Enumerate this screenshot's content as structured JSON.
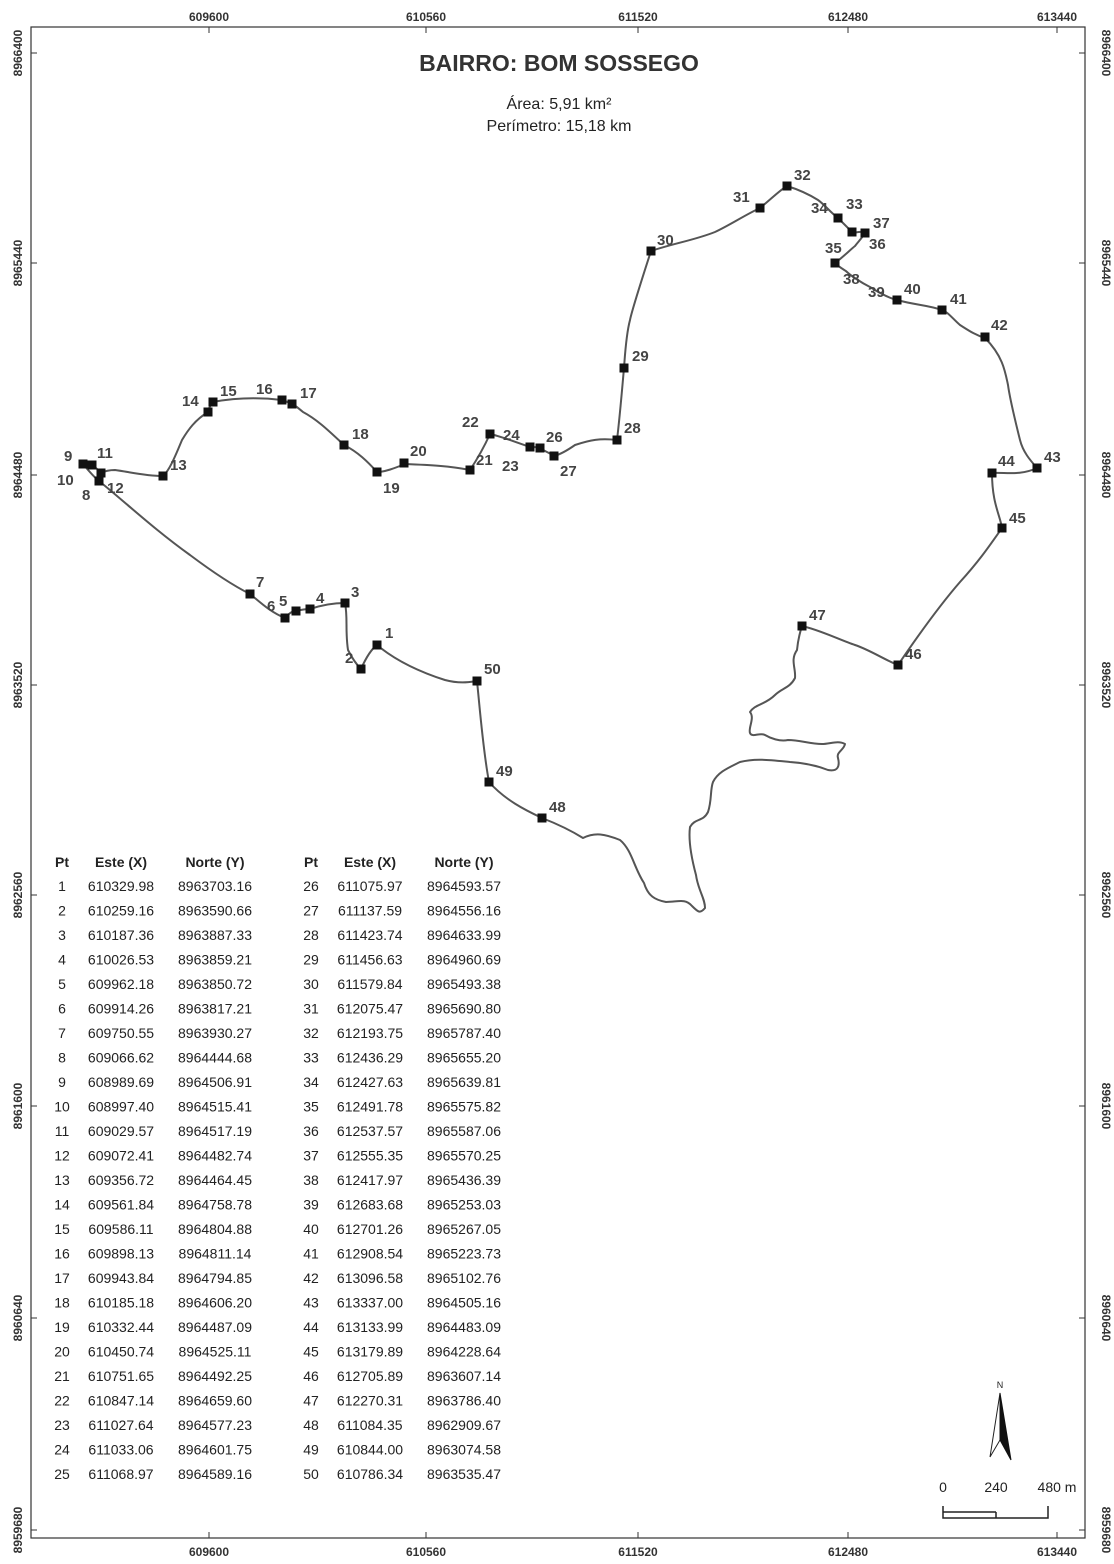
{
  "title": "BAIRRO: BOM SOSSEGO",
  "area": "Área: 5,91 km²",
  "perimeter": "Perímetro: 15,18 km",
  "x_ticks": [
    "609600",
    "610560",
    "611520",
    "612480",
    "613440"
  ],
  "y_ticks": [
    "8966400",
    "8965440",
    "8964480",
    "8963520",
    "8962560",
    "8961600",
    "8960640",
    "8959680"
  ],
  "table_headers": {
    "pt": "Pt",
    "x": "Este (X)",
    "y": "Norte (Y)"
  },
  "points": [
    {
      "pt": "1",
      "x": "610329.98",
      "y": "8963703.16"
    },
    {
      "pt": "2",
      "x": "610259.16",
      "y": "8963590.66"
    },
    {
      "pt": "3",
      "x": "610187.36",
      "y": "8963887.33"
    },
    {
      "pt": "4",
      "x": "610026.53",
      "y": "8963859.21"
    },
    {
      "pt": "5",
      "x": "609962.18",
      "y": "8963850.72"
    },
    {
      "pt": "6",
      "x": "609914.26",
      "y": "8963817.21"
    },
    {
      "pt": "7",
      "x": "609750.55",
      "y": "8963930.27"
    },
    {
      "pt": "8",
      "x": "609066.62",
      "y": "8964444.68"
    },
    {
      "pt": "9",
      "x": "608989.69",
      "y": "8964506.91"
    },
    {
      "pt": "10",
      "x": "608997.40",
      "y": "8964515.41"
    },
    {
      "pt": "11",
      "x": "609029.57",
      "y": "8964517.19"
    },
    {
      "pt": "12",
      "x": "609072.41",
      "y": "8964482.74"
    },
    {
      "pt": "13",
      "x": "609356.72",
      "y": "8964464.45"
    },
    {
      "pt": "14",
      "x": "609561.84",
      "y": "8964758.78"
    },
    {
      "pt": "15",
      "x": "609586.11",
      "y": "8964804.88"
    },
    {
      "pt": "16",
      "x": "609898.13",
      "y": "8964811.14"
    },
    {
      "pt": "17",
      "x": "609943.84",
      "y": "8964794.85"
    },
    {
      "pt": "18",
      "x": "610185.18",
      "y": "8964606.20"
    },
    {
      "pt": "19",
      "x": "610332.44",
      "y": "8964487.09"
    },
    {
      "pt": "20",
      "x": "610450.74",
      "y": "8964525.11"
    },
    {
      "pt": "21",
      "x": "610751.65",
      "y": "8964492.25"
    },
    {
      "pt": "22",
      "x": "610847.14",
      "y": "8964659.60"
    },
    {
      "pt": "23",
      "x": "611027.64",
      "y": "8964577.23"
    },
    {
      "pt": "24",
      "x": "611033.06",
      "y": "8964601.75"
    },
    {
      "pt": "25",
      "x": "611068.97",
      "y": "8964589.16"
    },
    {
      "pt": "26",
      "x": "611075.97",
      "y": "8964593.57"
    },
    {
      "pt": "27",
      "x": "611137.59",
      "y": "8964556.16"
    },
    {
      "pt": "28",
      "x": "611423.74",
      "y": "8964633.99"
    },
    {
      "pt": "29",
      "x": "611456.63",
      "y": "8964960.69"
    },
    {
      "pt": "30",
      "x": "611579.84",
      "y": "8965493.38"
    },
    {
      "pt": "31",
      "x": "612075.47",
      "y": "8965690.80"
    },
    {
      "pt": "32",
      "x": "612193.75",
      "y": "8965787.40"
    },
    {
      "pt": "33",
      "x": "612436.29",
      "y": "8965655.20"
    },
    {
      "pt": "34",
      "x": "612427.63",
      "y": "8965639.81"
    },
    {
      "pt": "35",
      "x": "612491.78",
      "y": "8965575.82"
    },
    {
      "pt": "36",
      "x": "612537.57",
      "y": "8965587.06"
    },
    {
      "pt": "37",
      "x": "612555.35",
      "y": "8965570.25"
    },
    {
      "pt": "38",
      "x": "612417.97",
      "y": "8965436.39"
    },
    {
      "pt": "39",
      "x": "612683.68",
      "y": "8965253.03"
    },
    {
      "pt": "40",
      "x": "612701.26",
      "y": "8965267.05"
    },
    {
      "pt": "41",
      "x": "612908.54",
      "y": "8965223.73"
    },
    {
      "pt": "42",
      "x": "613096.58",
      "y": "8965102.76"
    },
    {
      "pt": "43",
      "x": "613337.00",
      "y": "8964505.16"
    },
    {
      "pt": "44",
      "x": "613133.99",
      "y": "8964483.09"
    },
    {
      "pt": "45",
      "x": "613179.89",
      "y": "8964228.64"
    },
    {
      "pt": "46",
      "x": "612705.89",
      "y": "8963607.14"
    },
    {
      "pt": "47",
      "x": "612270.31",
      "y": "8963786.40"
    },
    {
      "pt": "48",
      "x": "611084.35",
      "y": "8962909.67"
    },
    {
      "pt": "49",
      "x": "610844.00",
      "y": "8963074.58"
    },
    {
      "pt": "50",
      "x": "610786.34",
      "y": "8963535.47"
    }
  ],
  "scale": {
    "zero": "0",
    "mid": "240",
    "end": "480 m"
  },
  "north_label": "N"
}
